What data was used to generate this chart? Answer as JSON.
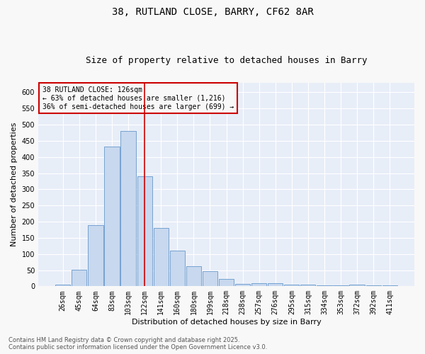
{
  "title": "38, RUTLAND CLOSE, BARRY, CF62 8AR",
  "subtitle": "Size of property relative to detached houses in Barry",
  "xlabel": "Distribution of detached houses by size in Barry",
  "ylabel": "Number of detached properties",
  "categories": [
    "26sqm",
    "45sqm",
    "64sqm",
    "83sqm",
    "103sqm",
    "122sqm",
    "141sqm",
    "160sqm",
    "180sqm",
    "199sqm",
    "218sqm",
    "238sqm",
    "257sqm",
    "276sqm",
    "295sqm",
    "315sqm",
    "334sqm",
    "353sqm",
    "372sqm",
    "392sqm",
    "411sqm"
  ],
  "values": [
    5,
    52,
    190,
    432,
    480,
    340,
    180,
    110,
    62,
    47,
    22,
    7,
    10,
    10,
    6,
    5,
    4,
    2,
    5,
    2,
    2
  ],
  "bar_color": "#c8d8ee",
  "bar_edge_color": "#6699cc",
  "vline_x": 5,
  "vline_color": "#cc0000",
  "annotation_box_text": "38 RUTLAND CLOSE: 126sqm\n← 63% of detached houses are smaller (1,216)\n36% of semi-detached houses are larger (699) →",
  "annotation_box_color": "#cc0000",
  "ylim": [
    0,
    630
  ],
  "yticks": [
    0,
    50,
    100,
    150,
    200,
    250,
    300,
    350,
    400,
    450,
    500,
    550,
    600
  ],
  "footer": "Contains HM Land Registry data © Crown copyright and database right 2025.\nContains public sector information licensed under the Open Government Licence v3.0.",
  "plot_bg_color": "#e8eef8",
  "fig_bg_color": "#f8f8f8",
  "grid_color": "#ffffff",
  "title_fontsize": 10,
  "subtitle_fontsize": 9,
  "axis_label_fontsize": 8,
  "tick_fontsize": 7,
  "footer_fontsize": 6,
  "ann_fontsize": 7
}
